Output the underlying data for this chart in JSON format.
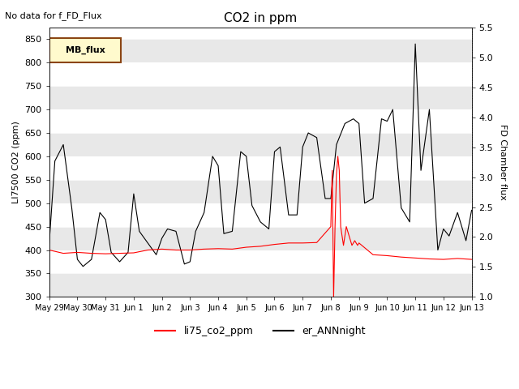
{
  "title": "CO2 in ppm",
  "ylabel_left": "LI7500 CO2 (ppm)",
  "ylabel_right": "FD Chamber flux",
  "xlabel": "",
  "ylim_left": [
    300,
    875
  ],
  "ylim_right": [
    1.0,
    5.5
  ],
  "top_left_note": "No data for f_FD_Flux",
  "mb_flux_label": "MB_flux",
  "legend_entries": [
    "li75_co2_ppm",
    "er_ANNnight"
  ],
  "legend_colors": [
    "red",
    "black"
  ],
  "background_color": "#ffffff",
  "band_color": "#e8e8e8",
  "yticks_left": [
    300,
    350,
    400,
    450,
    500,
    550,
    600,
    650,
    700,
    750,
    800,
    850
  ],
  "yticks_right": [
    1.0,
    1.5,
    2.0,
    2.5,
    3.0,
    3.5,
    4.0,
    4.5,
    5.0,
    5.5
  ],
  "xtick_labels": [
    "May 29",
    "May 30",
    "May 31",
    "Jun 1",
    "Jun 2",
    "Jun 3",
    "Jun 4",
    "Jun 5",
    "Jun 6",
    "Jun 7",
    "Jun 8",
    "Jun 9",
    "Jun 10",
    "Jun 11",
    "Jun 12",
    "Jun 13"
  ],
  "date_start": 0,
  "date_end": 15,
  "red_line_base": 395,
  "black_line_data": {
    "x": [
      0,
      0.2,
      0.5,
      0.8,
      1.0,
      1.2,
      1.5,
      1.8,
      2.0,
      2.2,
      2.5,
      2.8,
      3.0,
      3.2,
      3.5,
      3.8,
      4.0,
      4.2,
      4.5,
      4.8,
      5.0,
      5.2,
      5.5,
      5.8,
      6.0,
      6.2,
      6.5,
      6.8,
      7.0,
      7.2,
      7.5,
      7.8,
      8.0,
      8.2,
      8.5,
      8.8,
      9.0,
      9.2,
      9.5,
      9.8,
      10.0,
      10.2,
      10.5,
      10.8,
      11.0,
      11.2,
      11.5,
      11.8,
      12.0,
      12.2,
      12.5,
      12.8,
      13.0,
      13.2,
      13.5,
      13.8,
      14.0,
      14.2,
      14.5,
      14.8,
      15.0
    ],
    "y": [
      415,
      590,
      625,
      490,
      380,
      365,
      380,
      480,
      465,
      395,
      375,
      395,
      520,
      440,
      415,
      390,
      425,
      445,
      440,
      370,
      375,
      440,
      480,
      600,
      580,
      435,
      440,
      610,
      600,
      495,
      460,
      445,
      610,
      620,
      475,
      475,
      620,
      650,
      640,
      510,
      510,
      625,
      670,
      680,
      670,
      500,
      510,
      680,
      675,
      700,
      490,
      460,
      840,
      570,
      700,
      400,
      445,
      430,
      480,
      420,
      485
    ]
  },
  "red_line_data": {
    "x": [
      0,
      0.5,
      1.0,
      1.5,
      2.0,
      2.5,
      3.0,
      3.5,
      4.0,
      4.5,
      5.0,
      5.5,
      6.0,
      6.5,
      7.0,
      7.5,
      8.0,
      8.5,
      9.0,
      9.5,
      10.0,
      10.05,
      10.1,
      10.15,
      10.2,
      10.25,
      10.3,
      10.35,
      10.4,
      10.45,
      10.5,
      10.55,
      10.6,
      10.65,
      10.7,
      10.75,
      10.8,
      10.85,
      10.9,
      10.95,
      11.0,
      11.5,
      12.0,
      12.5,
      13.0,
      13.5,
      14.0,
      14.5,
      15.0
    ],
    "y": [
      400,
      393,
      395,
      393,
      392,
      393,
      394,
      400,
      402,
      400,
      400,
      402,
      403,
      402,
      406,
      408,
      412,
      415,
      415,
      416,
      450,
      570,
      300,
      450,
      560,
      600,
      570,
      450,
      430,
      410,
      430,
      450,
      440,
      430,
      420,
      410,
      415,
      420,
      415,
      410,
      415,
      390,
      388,
      385,
      383,
      381,
      380,
      382,
      380
    ]
  }
}
